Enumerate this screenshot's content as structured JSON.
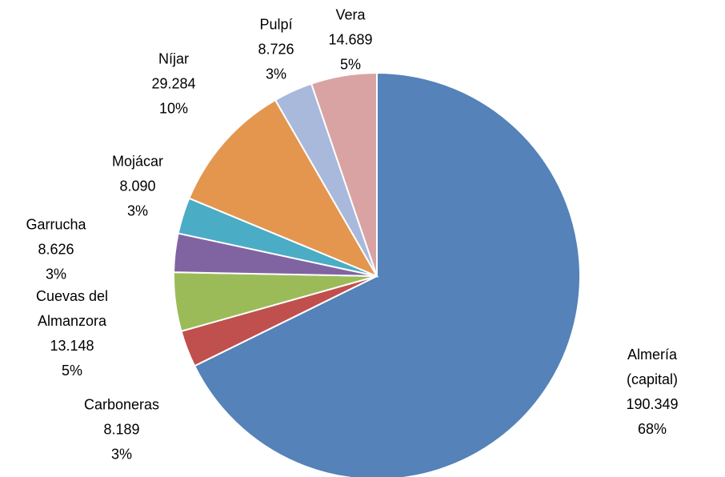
{
  "chart_data": {
    "type": "pie",
    "categories": [
      "Almería (capital)",
      "Carboneras",
      "Cuevas del Almanzora",
      "Garrucha",
      "Mojácar",
      "Níjar",
      "Pulpí",
      "Vera"
    ],
    "values": [
      190349,
      8189,
      13148,
      8626,
      8090,
      29284,
      8726,
      14689
    ],
    "value_labels": [
      "190.349",
      "8.189",
      "13.148",
      "8.626",
      "8.090",
      "29.284",
      "8.726",
      "14.689"
    ],
    "percent_labels": [
      "68%",
      "3%",
      "5%",
      "3%",
      "3%",
      "10%",
      "3%",
      "5%"
    ],
    "colors": [
      "#5482b9",
      "#c0504d",
      "#9bbb59",
      "#8064a2",
      "#4bacc6",
      "#e4964f",
      "#a9b9dc",
      "#d9a3a3"
    ]
  }
}
